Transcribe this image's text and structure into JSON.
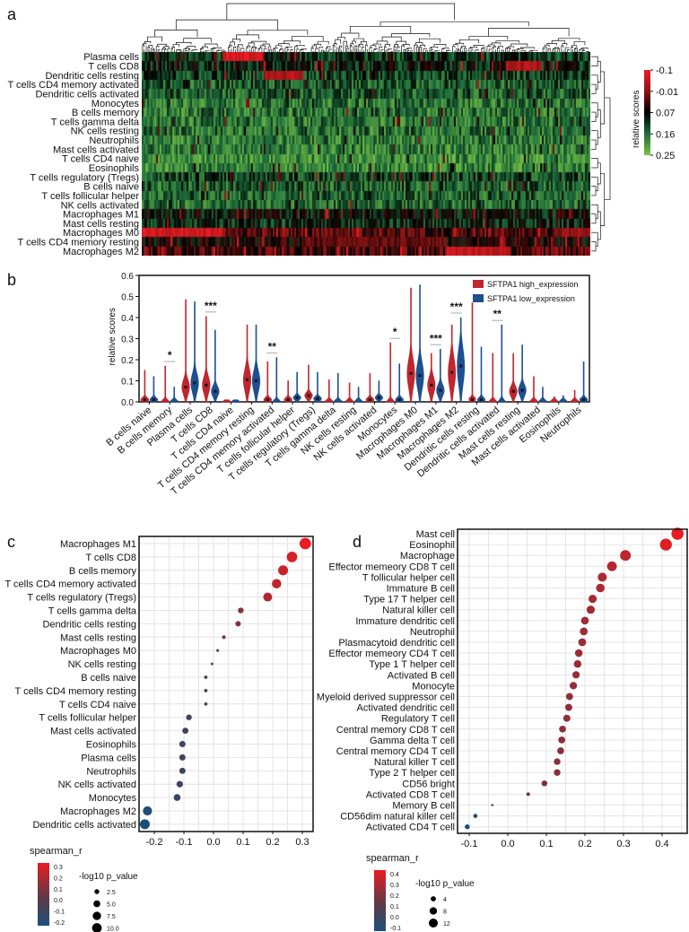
{
  "panel_labels": {
    "a": "a",
    "b": "b",
    "c": "c",
    "d": "d"
  },
  "chart_data": [
    {
      "panel": "a",
      "type": "heatmap",
      "rows": [
        "Plasma cells",
        "T cells CD8",
        "Dendritic cells resting",
        "T cells CD4 memory activated",
        "Dendritic cells activated",
        "Monocytes",
        "B cells memory",
        "T cells gamma delta",
        "NK cells resting",
        "Neutrophils",
        "Mast cells activated",
        "T cells CD4 naive",
        "Eosinophils",
        "T cells regulatory (Tregs)",
        "B cells naive",
        "T cells follicular helper",
        "NK cells activated",
        "Macrophages M1",
        "Mast cells resting",
        "Macrophages M0",
        "T cells CD4 memory resting",
        "Macrophages M2"
      ],
      "dendrogram": {
        "columns": true,
        "rows": true
      },
      "legend": {
        "title": "relative scores",
        "ticks": [
          -0.1,
          -0.01,
          0.07,
          0.16,
          0.25
        ],
        "tick_labels": [
          "-0.1",
          "-0.01",
          "0.07",
          "0.16",
          "0.25"
        ],
        "colors": [
          "#7ac143",
          "#1e6e3c",
          "#000000",
          "#8b1414",
          "#ee1c25"
        ]
      }
    },
    {
      "panel": "b",
      "type": "violin",
      "ylabel": "relative scores",
      "ylim": [
        0,
        0.6
      ],
      "yticks": [
        "0.0",
        "0.1",
        "0.2",
        "0.3",
        "0.4",
        "0.5",
        "0.6"
      ],
      "categories": [
        "B cells naive",
        "B cells memory",
        "Plasma cells",
        "T cells CD8",
        "T cells CD4 naive",
        "T cells CD4 memory resting",
        "T cells CD4 memory activated",
        "T cells follicular helper",
        "T cells regulatory (Tregs)",
        "T cells gamma delta",
        "NK cells resting",
        "NK cells activated",
        "Monocytes",
        "Macrophages M0",
        "Macrophages M1",
        "Macrophages M2",
        "Dendritic cells resting",
        "Dendritic cells activated",
        "Mast cells resting",
        "Mast cells activated",
        "Eosinophils",
        "Neutrophils"
      ],
      "series": [
        {
          "name": "SFTPA1 high_expression",
          "color": "#c0262d",
          "max": [
            0.15,
            0.17,
            0.485,
            0.405,
            0.01,
            0.365,
            0.19,
            0.1,
            0.175,
            0.105,
            0.09,
            0.135,
            0.28,
            0.54,
            0.23,
            0.365,
            0.47,
            0.23,
            0.23,
            0.12,
            0.025,
            0.055
          ],
          "median": [
            0.01,
            0.0,
            0.07,
            0.08,
            0.0,
            0.105,
            0.01,
            0.01,
            0.03,
            0.0,
            0.0,
            0.01,
            0.0,
            0.135,
            0.08,
            0.14,
            0.01,
            0.0,
            0.05,
            0.0,
            0.0,
            0.0
          ]
        },
        {
          "name": "SFTPA1 low_expression",
          "color": "#1d4f91",
          "max": [
            0.12,
            0.07,
            0.475,
            0.34,
            0.01,
            0.365,
            0.21,
            0.14,
            0.14,
            0.135,
            0.07,
            0.1,
            0.18,
            0.555,
            0.25,
            0.4,
            0.26,
            0.365,
            0.27,
            0.07,
            0.03,
            0.19
          ],
          "median": [
            0.01,
            0.0,
            0.09,
            0.05,
            0.0,
            0.1,
            0.0,
            0.02,
            0.015,
            0.0,
            0.0,
            0.02,
            0.01,
            0.125,
            0.055,
            0.17,
            0.01,
            0.0,
            0.055,
            0.0,
            0.0,
            0.01
          ]
        }
      ],
      "significance": [
        "",
        "*",
        "",
        "***",
        "",
        "",
        "**",
        "",
        "",
        "",
        "",
        "",
        "*",
        "",
        "***",
        "***",
        "",
        "**",
        "",
        "",
        "",
        ""
      ],
      "legend_position": "top-right"
    },
    {
      "panel": "c",
      "type": "scatter",
      "labels": [
        "Macrophages M1",
        "T cells CD8",
        "B cells memory",
        "T cells CD4 memory activated",
        "T cells regulatory (Tregs)",
        "T cells gamma delta",
        "Dendritic cells resting",
        "Mast cells resting",
        "Macrophages M0",
        "NK cells resting",
        "B cells naive",
        "T cells CD4 memory resting",
        "T cells CD4 naive",
        "T cells follicular helper",
        "Mast cells activated",
        "Eosinophils",
        "Plasma cells",
        "Neutrophils",
        "NK cells activated",
        "Monocytes",
        "Macrophages M2",
        "Dendritic cells activated"
      ],
      "highlighted": [
        "Macrophages M1",
        "T cells CD8",
        "T cells CD4 memory activated",
        "T cells regulatory (Tregs)",
        "Macrophages M2"
      ],
      "highlight_color": "#e0202a",
      "x": [
        0.31,
        0.265,
        0.235,
        0.213,
        0.183,
        0.092,
        0.083,
        0.035,
        0.014,
        -0.005,
        -0.026,
        -0.026,
        -0.026,
        -0.083,
        -0.095,
        -0.105,
        -0.105,
        -0.105,
        -0.114,
        -0.123,
        -0.223,
        -0.232
      ],
      "neg_log10_p": [
        14,
        12,
        10.5,
        9.5,
        8.5,
        3.5,
        3.2,
        1.5,
        0.8,
        0.7,
        1.2,
        1.2,
        1.2,
        3.5,
        4,
        4.2,
        4.2,
        4.2,
        4.5,
        5,
        9,
        10.5
      ],
      "xlim": [
        -0.25,
        0.34
      ],
      "xticks": [
        "-0.2",
        "-0.1",
        "0.0",
        "0.1",
        "0.2",
        "0.3"
      ],
      "color_legend": {
        "title": "spearman_r",
        "ticks": [
          "0.3",
          "0.2",
          "0.1",
          "0.0",
          "-0.1",
          "-0.2"
        ],
        "range": [
          -0.23,
          0.31
        ]
      },
      "size_legend": {
        "title": "-log10 p_value",
        "ticks": [
          "2.5",
          "5.0",
          "7.5",
          "10.0"
        ]
      }
    },
    {
      "panel": "d",
      "type": "scatter",
      "labels": [
        "Mast cell",
        "Eosinophil",
        "Macrophage",
        "Effector memeory CD8 T cell",
        "T follicular helper cell",
        "Immature  B cell",
        "Type 17 T helper cell",
        "Natural killer cell",
        "Immature dendritic cell",
        "Neutrophil",
        "Plasmacytoid dendritic cell",
        "Effector memeory CD4 T cell",
        "Type 1 T helper cell",
        "Activated B cell",
        "Monocyte",
        "Myeloid derived suppressor cell",
        "Activated dendritic cell",
        "Regulatory T cell",
        "Central memory CD8 T cell",
        "Gamma delta T cell",
        "Central memory CD4 T cell",
        "Natural killer T cell",
        "Type 2 T helper cell",
        "CD56 bright",
        "Activated CD8 T cell",
        "Memory B cell",
        "CD56dim natural killer cell",
        "Activated CD4 T cell"
      ],
      "highlighted": [
        "Macrophage",
        "Effector memeory CD8 T cell",
        "Effector memeory CD4 T cell",
        "Regulatory T cell"
      ],
      "highlight_color": "#e0202a",
      "x": [
        0.44,
        0.41,
        0.305,
        0.27,
        0.245,
        0.24,
        0.22,
        0.215,
        0.2,
        0.197,
        0.193,
        0.184,
        0.181,
        0.177,
        0.17,
        0.16,
        0.158,
        0.153,
        0.142,
        0.14,
        0.137,
        0.128,
        0.128,
        0.095,
        0.053,
        -0.04,
        -0.084,
        -0.105
      ],
      "neg_log10_p": [
        22,
        21,
        17,
        14,
        12,
        11,
        10,
        10,
        9,
        9,
        9,
        8.5,
        8.5,
        8,
        8,
        7.5,
        7.5,
        7.5,
        7,
        7,
        7,
        6.5,
        6.5,
        5,
        2,
        0.8,
        2.5,
        3.5
      ],
      "xlim": [
        -0.12,
        0.46
      ],
      "xticks": [
        "-0.1",
        "0.0",
        "0.1",
        "0.2",
        "0.3",
        "0.4"
      ],
      "color_legend": {
        "title": "spearman_r",
        "ticks": [
          "0.4",
          "0.3",
          "0.2",
          "0.1",
          "0.0",
          "-0.1"
        ],
        "range": [
          -0.105,
          0.44
        ]
      },
      "size_legend": {
        "title": "-log10 p_value",
        "ticks": [
          "4",
          "8",
          "12"
        ]
      }
    }
  ],
  "colors": {
    "negative": "#1b4f7a",
    "neutral": "#5e3a46",
    "positive": "#ea1b22"
  }
}
